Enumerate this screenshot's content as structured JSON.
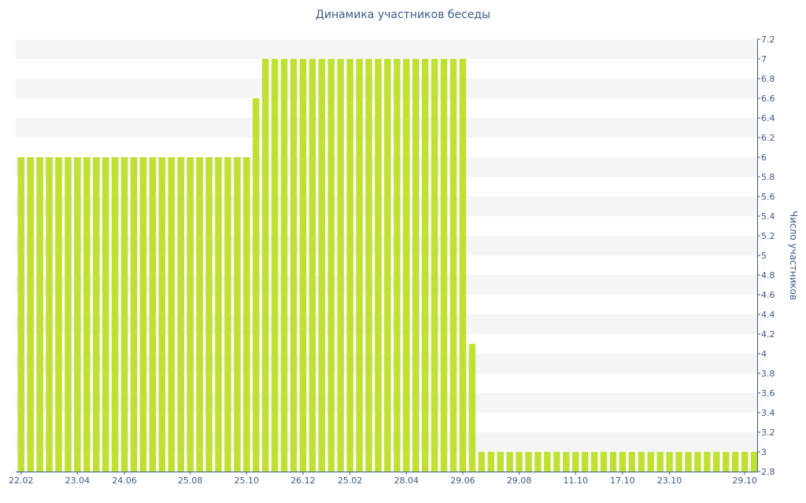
{
  "chart_data": {
    "type": "bar",
    "title": "Динамика участников беседы",
    "ylabel": "Число участников",
    "xlabel": "",
    "ylim": [
      2.8,
      7.2
    ],
    "y_ticks": [
      "2.8",
      "3",
      "3.2",
      "3.4",
      "3.6",
      "3.8",
      "4",
      "4.2",
      "4.4",
      "4.6",
      "4.8",
      "5",
      "5.2",
      "5.4",
      "5.6",
      "5.8",
      "6",
      "6.2",
      "6.4",
      "6.6",
      "6.8",
      "7",
      "7.2"
    ],
    "x_tick_labels": [
      "22.02",
      "23.04",
      "24.06",
      "25.08",
      "25.10",
      "26.12",
      "25.02",
      "28.04",
      "29.06",
      "29.08",
      "11.10",
      "17.10",
      "23.10",
      "29.10"
    ],
    "x_tick_bar_index": [
      0,
      6,
      11,
      18,
      24,
      30,
      35,
      41,
      47,
      53,
      59,
      64,
      69,
      77
    ],
    "series": [
      {
        "values": [
          6,
          6,
          6,
          6,
          6,
          6,
          6,
          6,
          6,
          6,
          6,
          6,
          6,
          6,
          6,
          6,
          6,
          6,
          6,
          6,
          6,
          6,
          6,
          6,
          6,
          6.6,
          7,
          7,
          7,
          7,
          7,
          7,
          7,
          7,
          7,
          7,
          7,
          7,
          7,
          7,
          7,
          7,
          7,
          7,
          7,
          7,
          7,
          7,
          4.1,
          3,
          3,
          3,
          3,
          3,
          3,
          3,
          3,
          3,
          3,
          3,
          3,
          3,
          3,
          3,
          3,
          3,
          3,
          3,
          3,
          3,
          3,
          3,
          3,
          3,
          3,
          3,
          3,
          3,
          3
        ]
      }
    ],
    "grid": "horizontal-bands",
    "y_axis_position": "right",
    "colors": {
      "bar": "#bfe132",
      "band": "#f5f5f5",
      "axis": "#3d5a8c",
      "text": "#3d5a8c"
    }
  }
}
